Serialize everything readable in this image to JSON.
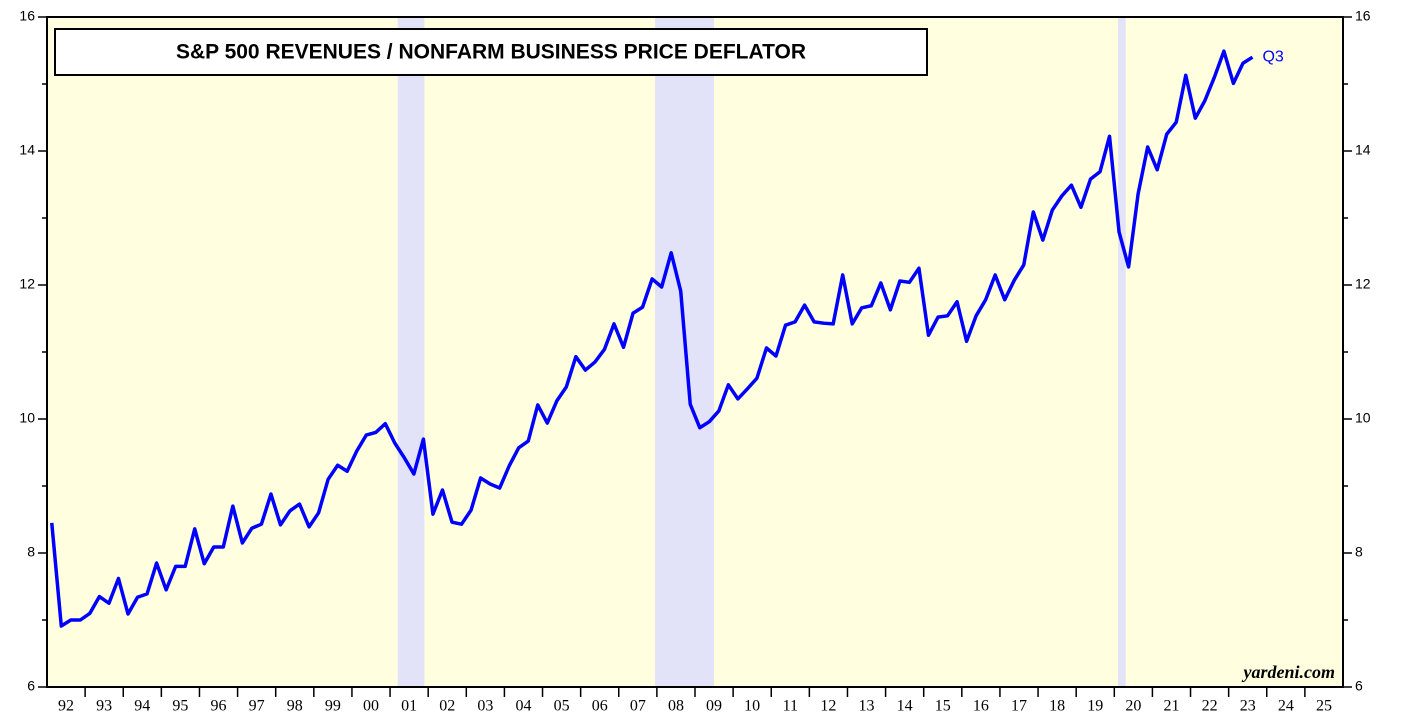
{
  "chart_data": {
    "type": "line",
    "title": "S&P 500 REVENUES / NONFARM BUSINESS PRICE DEFLATOR",
    "annotation": "Q3",
    "source": "yardeni.com",
    "color": "#0000ff",
    "background": "#ffffe0",
    "recession_color": "#e2e2f8",
    "recessions": [
      [
        2001.2,
        2001.9
      ],
      [
        2007.95,
        2009.5
      ],
      [
        2020.1,
        2020.3
      ]
    ],
    "xlim": [
      1992,
      2026
    ],
    "ylim": [
      6,
      16
    ],
    "yticks": [
      6,
      8,
      10,
      12,
      14,
      16
    ],
    "yminor_ticks": [
      7,
      9,
      11,
      13,
      15
    ],
    "xminor_ticks": [
      1993,
      1994,
      1995,
      1996,
      1997,
      1998,
      1999,
      2000,
      2001,
      2002,
      2003,
      2004,
      2005,
      2006,
      2007,
      2008,
      2009,
      2010,
      2011,
      2012,
      2013,
      2014,
      2015,
      2016,
      2017,
      2018,
      2019,
      2020,
      2021,
      2022,
      2023,
      2024,
      2025
    ],
    "xticks": [
      {
        "value": 1992.5,
        "label": "92"
      },
      {
        "value": 1993.5,
        "label": "93"
      },
      {
        "value": 1994.5,
        "label": "94"
      },
      {
        "value": 1995.5,
        "label": "95"
      },
      {
        "value": 1996.5,
        "label": "96"
      },
      {
        "value": 1997.5,
        "label": "97"
      },
      {
        "value": 1998.5,
        "label": "98"
      },
      {
        "value": 1999.5,
        "label": "99"
      },
      {
        "value": 2000.5,
        "label": "00"
      },
      {
        "value": 2001.5,
        "label": "01"
      },
      {
        "value": 2002.5,
        "label": "02"
      },
      {
        "value": 2003.5,
        "label": "03"
      },
      {
        "value": 2004.5,
        "label": "04"
      },
      {
        "value": 2005.5,
        "label": "05"
      },
      {
        "value": 2006.5,
        "label": "06"
      },
      {
        "value": 2007.5,
        "label": "07"
      },
      {
        "value": 2008.5,
        "label": "08"
      },
      {
        "value": 2009.5,
        "label": "09"
      },
      {
        "value": 2010.5,
        "label": "10"
      },
      {
        "value": 2011.5,
        "label": "11"
      },
      {
        "value": 2012.5,
        "label": "12"
      },
      {
        "value": 2013.5,
        "label": "13"
      },
      {
        "value": 2014.5,
        "label": "14"
      },
      {
        "value": 2015.5,
        "label": "15"
      },
      {
        "value": 2016.5,
        "label": "16"
      },
      {
        "value": 2017.5,
        "label": "17"
      },
      {
        "value": 2018.5,
        "label": "18"
      },
      {
        "value": 2019.5,
        "label": "19"
      },
      {
        "value": 2020.5,
        "label": "20"
      },
      {
        "value": 2021.5,
        "label": "21"
      },
      {
        "value": 2022.5,
        "label": "22"
      },
      {
        "value": 2023.5,
        "label": "23"
      },
      {
        "value": 2024.5,
        "label": "24"
      },
      {
        "value": 2025.5,
        "label": "25"
      }
    ],
    "x": [
      1992.125,
      1992.375,
      1992.625,
      1992.875,
      1993.125,
      1993.375,
      1993.625,
      1993.875,
      1994.125,
      1994.375,
      1994.625,
      1994.875,
      1995.125,
      1995.375,
      1995.625,
      1995.875,
      1996.125,
      1996.375,
      1996.625,
      1996.875,
      1997.125,
      1997.375,
      1997.625,
      1997.875,
      1998.125,
      1998.375,
      1998.625,
      1998.875,
      1999.125,
      1999.375,
      1999.625,
      1999.875,
      2000.125,
      2000.375,
      2000.625,
      2000.875,
      2001.125,
      2001.375,
      2001.625,
      2001.875,
      2002.125,
      2002.375,
      2002.625,
      2002.875,
      2003.125,
      2003.375,
      2003.625,
      2003.875,
      2004.125,
      2004.375,
      2004.625,
      2004.875,
      2005.125,
      2005.375,
      2005.625,
      2005.875,
      2006.125,
      2006.375,
      2006.625,
      2006.875,
      2007.125,
      2007.375,
      2007.625,
      2007.875,
      2008.125,
      2008.375,
      2008.625,
      2008.875,
      2009.125,
      2009.375,
      2009.625,
      2009.875,
      2010.125,
      2010.375,
      2010.625,
      2010.875,
      2011.125,
      2011.375,
      2011.625,
      2011.875,
      2012.125,
      2012.375,
      2012.625,
      2012.875,
      2013.125,
      2013.375,
      2013.625,
      2013.875,
      2014.125,
      2014.375,
      2014.625,
      2014.875,
      2015.125,
      2015.375,
      2015.625,
      2015.875,
      2016.125,
      2016.375,
      2016.625,
      2016.875,
      2017.125,
      2017.375,
      2017.625,
      2017.875,
      2018.125,
      2018.375,
      2018.625,
      2018.875,
      2019.125,
      2019.375,
      2019.625,
      2019.875,
      2020.125,
      2020.375,
      2020.625,
      2020.875,
      2021.125,
      2021.375,
      2021.625,
      2021.875,
      2022.125,
      2022.375,
      2022.625,
      2022.875,
      2023.125,
      2023.375,
      2023.625
    ],
    "values": [
      8.45,
      6.91,
      7.0,
      7.0,
      7.1,
      7.35,
      7.25,
      7.62,
      7.09,
      7.34,
      7.39,
      7.85,
      7.45,
      7.8,
      7.8,
      8.36,
      7.84,
      8.09,
      8.09,
      8.7,
      8.15,
      8.37,
      8.43,
      8.88,
      8.42,
      8.63,
      8.73,
      8.39,
      8.6,
      9.1,
      9.31,
      9.22,
      9.52,
      9.76,
      9.8,
      9.93,
      9.64,
      9.42,
      9.18,
      9.7,
      8.58,
      8.94,
      8.46,
      8.43,
      8.64,
      9.12,
      9.03,
      8.97,
      9.3,
      9.57,
      9.67,
      10.21,
      9.94,
      10.27,
      10.48,
      10.93,
      10.73,
      10.85,
      11.04,
      11.42,
      11.07,
      11.58,
      11.67,
      12.09,
      11.97,
      12.48,
      11.91,
      10.22,
      9.87,
      9.96,
      10.12,
      10.51,
      10.3,
      10.45,
      10.61,
      11.06,
      10.94,
      11.4,
      11.45,
      11.7,
      11.45,
      11.43,
      11.42,
      12.15,
      11.42,
      11.66,
      11.69,
      12.03,
      11.63,
      12.06,
      12.04,
      12.25,
      11.25,
      11.52,
      11.54,
      11.75,
      11.16,
      11.54,
      11.78,
      12.15,
      11.78,
      12.07,
      12.3,
      13.09,
      12.67,
      13.12,
      13.33,
      13.49,
      13.16,
      13.58,
      13.69,
      14.22,
      12.79,
      12.27,
      13.36,
      14.06,
      13.72,
      14.25,
      14.43,
      15.13,
      14.49,
      14.75,
      15.1,
      15.49,
      15.01,
      15.31,
      15.4
    ]
  }
}
